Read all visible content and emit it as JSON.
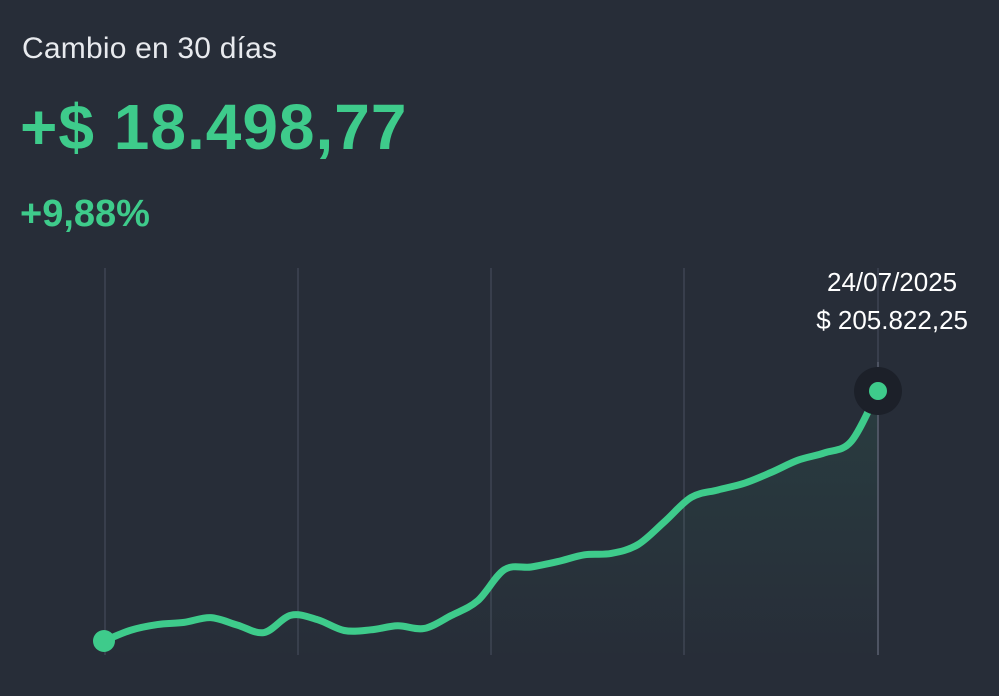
{
  "header": {
    "title": "Cambio en 30 días",
    "change_amount": "+$ 18.498,77",
    "change_percent": "+9,88%"
  },
  "tooltip": {
    "date": "24/07/2025",
    "value": "$ 205.822,25"
  },
  "colors": {
    "background": "#272d38",
    "accent": "#3ecb8b",
    "gridline": "#4a5060",
    "text": "#ffffff"
  },
  "chart_data": {
    "type": "line",
    "grid": "vertical",
    "days": 30,
    "start_value": 187323.48,
    "end_value": 205822.25,
    "end_date": "24/07/2025",
    "series": [
      {
        "values": [
          187323,
          188120,
          188540,
          188700,
          189050,
          188500,
          187950,
          189230,
          188900,
          188100,
          188150,
          188450,
          188250,
          189200,
          190300,
          192600,
          192800,
          193200,
          193700,
          193800,
          194450,
          196150,
          197950,
          198500,
          199000,
          199800,
          200700,
          201250,
          202100,
          205822
        ]
      }
    ]
  }
}
